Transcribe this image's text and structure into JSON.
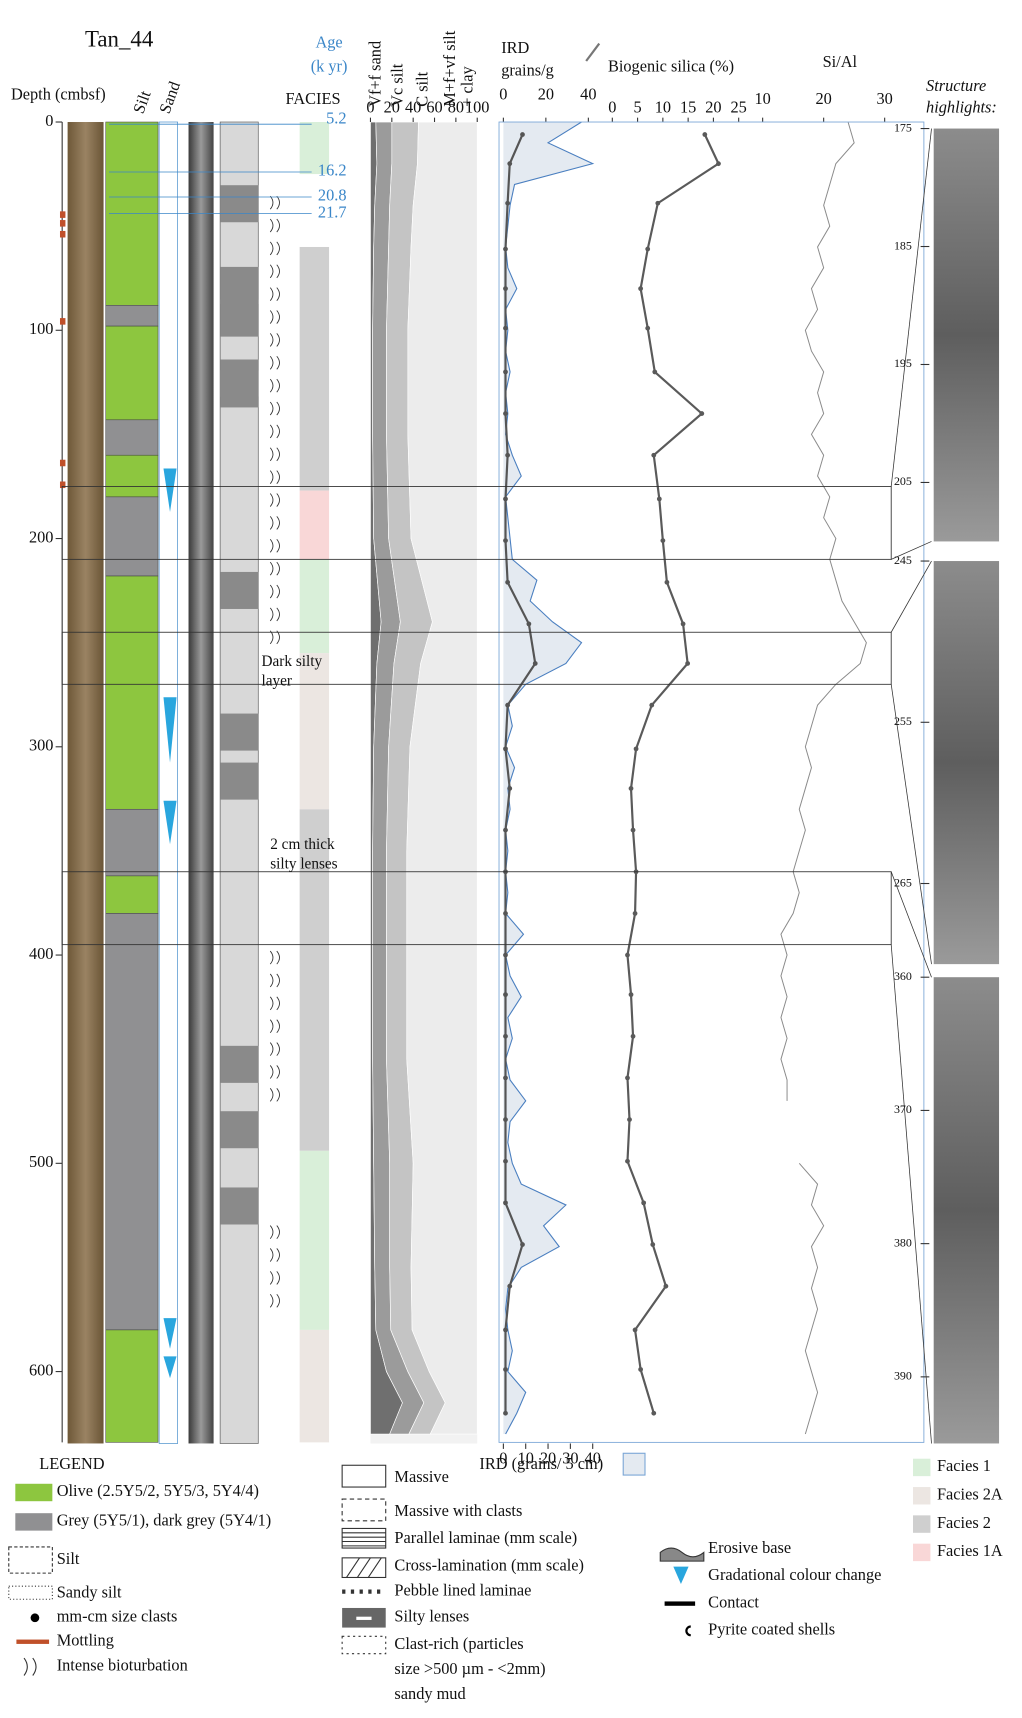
{
  "title": "Tan_44",
  "depth_axis": {
    "label": "Depth (cmbsf)",
    "range": [
      0,
      634
    ],
    "ticks": [
      0,
      100,
      200,
      300,
      400,
      500,
      600
    ]
  },
  "lithology": {
    "labels": [
      "Silt",
      "Sand"
    ],
    "intervals": [
      {
        "top": 0,
        "base": 88,
        "color": "#8dc63f"
      },
      {
        "top": 88,
        "base": 98,
        "color": "#909092"
      },
      {
        "top": 98,
        "base": 143,
        "color": "#8dc63f"
      },
      {
        "top": 143,
        "base": 160,
        "color": "#909092"
      },
      {
        "top": 160,
        "base": 180,
        "color": "#8dc63f"
      },
      {
        "top": 180,
        "base": 218,
        "color": "#909092"
      },
      {
        "top": 218,
        "base": 330,
        "color": "#8dc63f"
      },
      {
        "top": 330,
        "base": 362,
        "color": "#909092"
      },
      {
        "top": 362,
        "base": 380,
        "color": "#8dc63f"
      },
      {
        "top": 380,
        "base": 580,
        "color": "#909092"
      },
      {
        "top": 580,
        "base": 634,
        "color": "#8dc63f"
      }
    ]
  },
  "facies": {
    "label": "FACIES",
    "intervals": [
      {
        "top": 0,
        "base": 25,
        "color": "#d9efd9"
      },
      {
        "top": 60,
        "base": 177,
        "color": "#cfcfcf"
      },
      {
        "top": 177,
        "base": 210,
        "color": "#f9d7d7"
      },
      {
        "top": 210,
        "base": 255,
        "color": "#d9efd9"
      },
      {
        "top": 255,
        "base": 330,
        "color": "#ece6e2"
      },
      {
        "top": 330,
        "base": 494,
        "color": "#cfcfcf"
      },
      {
        "top": 494,
        "base": 580,
        "color": "#d9efd9"
      },
      {
        "top": 580,
        "base": 634,
        "color": "#ece6e2"
      }
    ]
  },
  "age": {
    "label": [
      "Age",
      "(k yr)"
    ],
    "ages": [
      {
        "value": 5.2,
        "depth": 0
      },
      {
        "value": 16.2,
        "depth": 24
      },
      {
        "value": 20.8,
        "depth": 36
      },
      {
        "value": 21.7,
        "depth": 44
      }
    ]
  },
  "grain_size": {
    "xlim": [
      0,
      100
    ],
    "xticks": [
      0,
      20,
      40,
      60,
      80,
      100
    ],
    "depth": [
      0,
      20,
      40,
      60,
      100,
      150,
      200,
      240,
      260,
      300,
      350,
      400,
      450,
      500,
      550,
      580,
      600,
      615,
      630
    ],
    "series": [
      {
        "name": [
          "Vf+f sand"
        ],
        "color": "#6f6f6f",
        "values": [
          5,
          6,
          4,
          3,
          2,
          2,
          3,
          10,
          6,
          3,
          2,
          2,
          2,
          3,
          4,
          5,
          15,
          30,
          18
        ]
      },
      {
        "name": [
          "Vc silt"
        ],
        "color": "#9b9b9b",
        "values": [
          15,
          14,
          14,
          14,
          13,
          13,
          14,
          18,
          16,
          14,
          13,
          13,
          13,
          15,
          14,
          14,
          20,
          20,
          18
        ]
      },
      {
        "name": [
          "C silt"
        ],
        "color": "#c4c4c4",
        "values": [
          25,
          24,
          22,
          21,
          20,
          20,
          21,
          30,
          25,
          20,
          19,
          19,
          19,
          22,
          20,
          20,
          20,
          20,
          20
        ]
      },
      {
        "name": [
          "M+f+vf silt",
          "+ clay"
        ],
        "color": "#ececec",
        "values": [
          55,
          56,
          60,
          62,
          65,
          65,
          62,
          42,
          53,
          63,
          66,
          66,
          66,
          60,
          62,
          61,
          45,
          30,
          44
        ]
      }
    ]
  },
  "ird": {
    "label": [
      "IRD",
      "grains/g"
    ],
    "xlim": [
      0,
      40
    ],
    "xticks": [
      0,
      20,
      40
    ],
    "color": "#555555",
    "depth": [
      6,
      20,
      39,
      61,
      80,
      99,
      120,
      140,
      160,
      181,
      201,
      221,
      241,
      260,
      280,
      301,
      320,
      340,
      360,
      380,
      400,
      419,
      439,
      459,
      479,
      499,
      519,
      539,
      559,
      580,
      599,
      620
    ],
    "values": [
      9,
      3,
      2,
      1,
      1,
      1,
      1,
      1,
      2,
      1,
      1,
      2,
      12,
      15,
      2,
      1,
      3,
      1,
      1,
      1,
      1,
      1,
      1,
      1,
      1,
      1,
      1,
      9,
      3,
      1,
      1,
      1
    ]
  },
  "ird_5cm": {
    "label": "IRD (grains/ 5 cm)",
    "xlim": [
      0,
      40
    ],
    "xticks": [
      0,
      10,
      20,
      30,
      40
    ],
    "color": "#4a7fc0",
    "fill": "#e4eaf1",
    "depth": [
      0,
      10,
      20,
      30,
      40,
      50,
      60,
      70,
      80,
      90,
      100,
      110,
      120,
      130,
      140,
      150,
      160,
      170,
      180,
      190,
      200,
      210,
      220,
      230,
      240,
      250,
      260,
      270,
      280,
      290,
      300,
      310,
      320,
      330,
      340,
      350,
      360,
      370,
      380,
      390,
      400,
      410,
      420,
      430,
      440,
      450,
      460,
      470,
      480,
      490,
      500,
      510,
      520,
      530,
      540,
      550,
      560,
      570,
      580,
      590,
      600,
      610,
      620,
      630
    ],
    "values": [
      35,
      20,
      40,
      5,
      3,
      2,
      1,
      2,
      6,
      1,
      2,
      1,
      3,
      1,
      2,
      1,
      4,
      8,
      1,
      2,
      3,
      4,
      15,
      12,
      22,
      35,
      28,
      10,
      2,
      4,
      1,
      5,
      2,
      3,
      1,
      2,
      1,
      2,
      1,
      9,
      1,
      3,
      8,
      2,
      4,
      1,
      3,
      10,
      3,
      2,
      4,
      8,
      28,
      18,
      25,
      8,
      2,
      1,
      2,
      4,
      2,
      10,
      6,
      1
    ]
  },
  "silica": {
    "label": "Biogenic silica (%)",
    "xlim": [
      0,
      25
    ],
    "xticks": [
      0,
      5,
      10,
      15,
      20,
      25
    ],
    "color": "#5a5a5a",
    "depth": [
      6,
      20,
      39,
      61,
      80,
      99,
      120,
      140,
      160,
      181,
      201,
      221,
      241,
      260,
      280,
      301,
      320,
      340,
      360,
      380,
      400,
      419,
      439,
      459,
      479,
      499,
      519,
      539,
      559,
      580,
      599,
      620
    ],
    "values": [
      18.3,
      21,
      9,
      7,
      5.6,
      7,
      8.4,
      17.7,
      8.2,
      9.3,
      10,
      10.8,
      14,
      14.9,
      7.8,
      4.7,
      3.7,
      4.1,
      4.7,
      4.5,
      3,
      3.7,
      4.1,
      3,
      3.4,
      3,
      6.2,
      8,
      10.6,
      4.5,
      5.6,
      8.2
    ]
  },
  "si_al": {
    "label": "Si/Al",
    "xlim": [
      10,
      30
    ],
    "xticks": [
      10,
      20,
      30
    ],
    "color": "#8a8a8a",
    "depth": [
      0,
      10,
      20,
      30,
      40,
      50,
      60,
      70,
      80,
      90,
      100,
      110,
      120,
      130,
      140,
      150,
      160,
      170,
      180,
      190,
      200,
      210,
      220,
      230,
      240,
      250,
      260,
      270,
      280,
      290,
      300,
      310,
      320,
      330,
      340,
      350,
      360,
      370,
      380,
      390,
      400,
      410,
      420,
      430,
      440,
      450,
      460,
      470,
      480,
      490,
      500,
      510,
      520,
      530,
      540,
      550,
      560,
      570,
      580,
      590,
      600,
      610,
      620,
      630
    ],
    "values": [
      24,
      25,
      22,
      21,
      20,
      21,
      19,
      20,
      18,
      19,
      17,
      18,
      20,
      19,
      20,
      18,
      20,
      19,
      21,
      20,
      22,
      21,
      22,
      23,
      25,
      27,
      26,
      22,
      19,
      18,
      17,
      18,
      17,
      16,
      17,
      16,
      15,
      16,
      15,
      13,
      14,
      13,
      14,
      13,
      14,
      13,
      14,
      14,
      null,
      null,
      16,
      19,
      18,
      20,
      18,
      19,
      18,
      19,
      18,
      17,
      18,
      19,
      18,
      17
    ]
  },
  "highlights": {
    "label": [
      "Structure",
      "highlights:"
    ],
    "panels": [
      {
        "range": [
          175,
          210
        ],
        "ticks": [
          175,
          185,
          195,
          205
        ]
      },
      {
        "range": [
          245,
          270
        ],
        "ticks": [
          245,
          255,
          265
        ]
      },
      {
        "range": [
          360,
          395
        ],
        "ticks": [
          360,
          370,
          380,
          390
        ]
      }
    ]
  },
  "annotations": [
    {
      "lines": [
        "Dark silty",
        "layer"
      ]
    },
    {
      "lines": [
        "2 cm thick",
        "silty lenses"
      ]
    }
  ],
  "legend": {
    "title": "LEGEND",
    "lithology": [
      {
        "label": "Olive (2.5Y5/2, 5Y5/3, 5Y4/4)",
        "color": "#8dc63f"
      },
      {
        "label": "Grey (5Y5/1), dark grey (5Y4/1)",
        "color": "#909092"
      }
    ],
    "symbols": [
      "Silt",
      "Sandy silt",
      "mm-cm size clasts",
      "Mottling",
      "Intense bioturbation"
    ],
    "structures": [
      "Massive",
      "Massive with clasts",
      "Parallel laminae (mm scale)",
      "Cross-lamination (mm scale)",
      "Pebble lined laminae",
      "Silty lenses"
    ],
    "clast_rich": [
      "Clast-rich (particles",
      "size >500 µm - <2mm)",
      "sandy mud"
    ],
    "contacts": [
      "Erosive base",
      "Gradational colour change",
      "Contact",
      "Pyrite coated shells"
    ],
    "facies": [
      {
        "label": "Facies 1",
        "color": "#d9efd9"
      },
      {
        "label": "Facies 2A",
        "color": "#ece6e2"
      },
      {
        "label": "Facies 2",
        "color": "#cfcfcf"
      },
      {
        "label": "Facies 1A",
        "color": "#f9d7d7"
      }
    ]
  }
}
